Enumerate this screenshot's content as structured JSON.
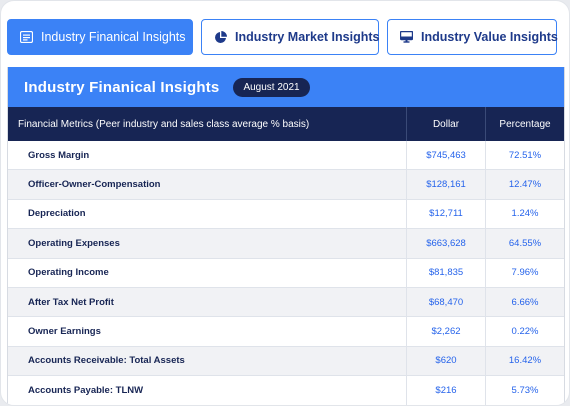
{
  "tabs": [
    {
      "label": "Industry Finanical Insights",
      "icon": "document-icon",
      "active": true
    },
    {
      "label": "Industry Market Insights",
      "icon": "pie-chart-icon",
      "active": false
    },
    {
      "label": "Industry Value Insights",
      "icon": "monitor-icon",
      "active": false
    }
  ],
  "panel": {
    "title": "Industry Finanical Insights",
    "date_badge": "August 2021"
  },
  "table": {
    "headers": [
      "Financial Metrics (Peer industry and sales class average % basis)",
      "Dollar",
      "Percentage"
    ],
    "rows": [
      {
        "metric": "Gross Margin",
        "dollar": "$745,463",
        "percentage": "72.51%"
      },
      {
        "metric": "Officer-Owner-Compensation",
        "dollar": "$128,161",
        "percentage": "12.47%"
      },
      {
        "metric": "Depreciation",
        "dollar": "$12,711",
        "percentage": "1.24%"
      },
      {
        "metric": "Operating Expenses",
        "dollar": "$663,628",
        "percentage": "64.55%"
      },
      {
        "metric": "Operating Income",
        "dollar": "$81,835",
        "percentage": "7.96%"
      },
      {
        "metric": "After Tax Net Profit",
        "dollar": "$68,470",
        "percentage": "6.66%"
      },
      {
        "metric": "Owner Earnings",
        "dollar": "$2,262",
        "percentage": "0.22%"
      },
      {
        "metric": "Accounts Receivable: Total Assets",
        "dollar": "$620",
        "percentage": "16.42%"
      },
      {
        "metric": "Accounts Payable: TLNW",
        "dollar": "$216",
        "percentage": "5.73%"
      }
    ]
  },
  "colors": {
    "accent": "#3b82f6",
    "navy": "#172554",
    "value_text": "#2563eb"
  }
}
